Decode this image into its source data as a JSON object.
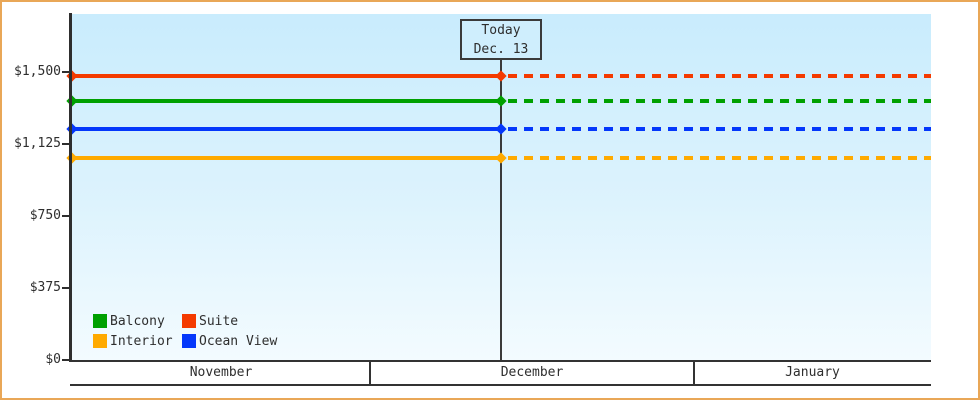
{
  "colors": {
    "frame_border": "#e9a757",
    "axis": "#2e2e2e",
    "plot_bg_top": "#c9ecfd",
    "plot_bg_bottom": "#f3fbff",
    "today_box_bg": "#cfeefd",
    "today_line": "#3a3a3a"
  },
  "chart_data": {
    "type": "line",
    "title": "",
    "series": [
      {
        "name": "Suite",
        "color": "#f43a00",
        "value": 1475
      },
      {
        "name": "Balcony",
        "color": "#00a000",
        "value": 1350
      },
      {
        "name": "Ocean View",
        "color": "#0437fb",
        "value": 1200
      },
      {
        "name": "Interior",
        "color": "#ffaa00",
        "value": 1050
      }
    ],
    "y_axis": {
      "tick_labels": [
        "$1,500",
        "$1,125",
        "$750",
        "$375",
        "$0"
      ],
      "tick_values": [
        1500,
        1125,
        750,
        375,
        0
      ],
      "ylim": [
        0,
        1800
      ],
      "grid": false
    },
    "x_axis": {
      "categories": [
        "November",
        "December",
        "January"
      ]
    },
    "today": {
      "line1": "Today",
      "line2": "Dec. 13"
    },
    "style_notes": {
      "solid_segment": "from y-axis to today marker",
      "dotted_segment": "from today marker to right edge",
      "marker_shape": "diamond at axis and at today line"
    },
    "legend": {
      "position": "bottom-left-inside",
      "rows": [
        [
          {
            "label": "Balcony",
            "color": "#00a000"
          },
          {
            "label": "Suite",
            "color": "#f43a00"
          }
        ],
        [
          {
            "label": "Interior",
            "color": "#ffaa00"
          },
          {
            "label": "Ocean View",
            "color": "#0437fb"
          }
        ]
      ]
    }
  }
}
